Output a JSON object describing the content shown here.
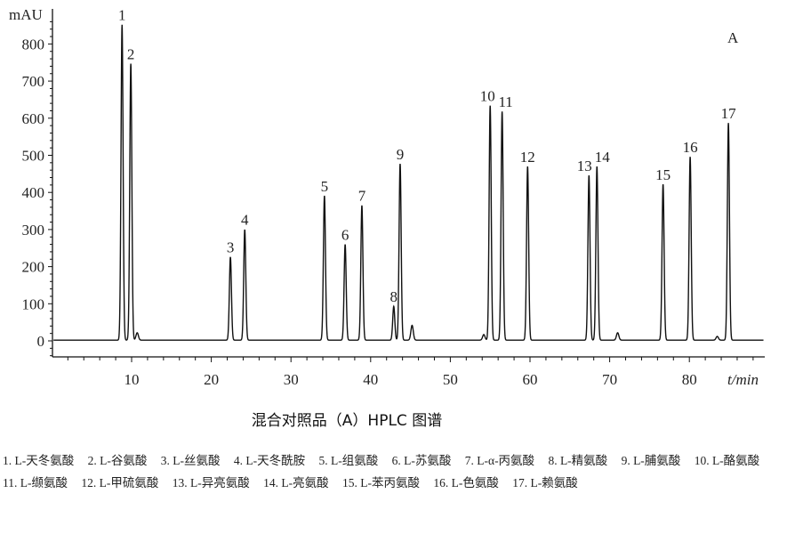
{
  "chart_data": {
    "type": "line",
    "title": "混合对照品（A）HPLC 图谱",
    "panel_label": "A",
    "ylabel": "mAU",
    "xlabel": "t/min",
    "xlim": [
      0,
      89.5
    ],
    "ylim": [
      -40,
      870
    ],
    "xticks": [
      10,
      20,
      30,
      40,
      50,
      60,
      70,
      80
    ],
    "yticks": [
      0,
      100,
      200,
      300,
      400,
      500,
      600,
      700,
      800
    ],
    "grid": false,
    "peaks": [
      {
        "label": "1",
        "t": 8.8,
        "height": 850
      },
      {
        "label": "2",
        "t": 9.9,
        "height": 745
      },
      {
        "label": "3",
        "t": 22.4,
        "height": 224
      },
      {
        "label": "4",
        "t": 24.2,
        "height": 298
      },
      {
        "label": "5",
        "t": 34.2,
        "height": 389
      },
      {
        "label": "6",
        "t": 36.8,
        "height": 258
      },
      {
        "label": "7",
        "t": 38.9,
        "height": 363
      },
      {
        "label": "8",
        "t": 42.9,
        "height": 91
      },
      {
        "label": "9",
        "t": 43.7,
        "height": 475
      },
      {
        "label": "10",
        "t": 55.0,
        "height": 632
      },
      {
        "label": "11",
        "t": 56.5,
        "height": 616
      },
      {
        "label": "12",
        "t": 59.7,
        "height": 468
      },
      {
        "label": "13",
        "t": 67.4,
        "height": 444
      },
      {
        "label": "14",
        "t": 68.4,
        "height": 468
      },
      {
        "label": "15",
        "t": 76.7,
        "height": 420
      },
      {
        "label": "16",
        "t": 80.1,
        "height": 494
      },
      {
        "label": "17",
        "t": 84.9,
        "height": 585
      }
    ],
    "minor_peaks": [
      {
        "t": 10.7,
        "height": 20
      },
      {
        "t": 45.2,
        "height": 40
      },
      {
        "t": 54.2,
        "height": 15
      },
      {
        "t": 71.0,
        "height": 20
      },
      {
        "t": 83.5,
        "height": 10
      }
    ]
  },
  "legend": [
    "1. L-天冬氨酸",
    "2. L-谷氨酸",
    "3. L-丝氨酸",
    "4. L-天冬酰胺",
    "5. L-组氨酸",
    "6. L-苏氨酸",
    "7. L-α-丙氨酸",
    "8. L-精氨酸",
    "9. L-脯氨酸",
    "10. L-酪氨酸",
    "11. L-缬氨酸",
    "12. L-甲硫氨酸",
    "13. L-异亮氨酸",
    "14. L-亮氨酸",
    "15. L-苯丙氨酸",
    "16. L-色氨酸",
    "17. L-赖氨酸"
  ]
}
